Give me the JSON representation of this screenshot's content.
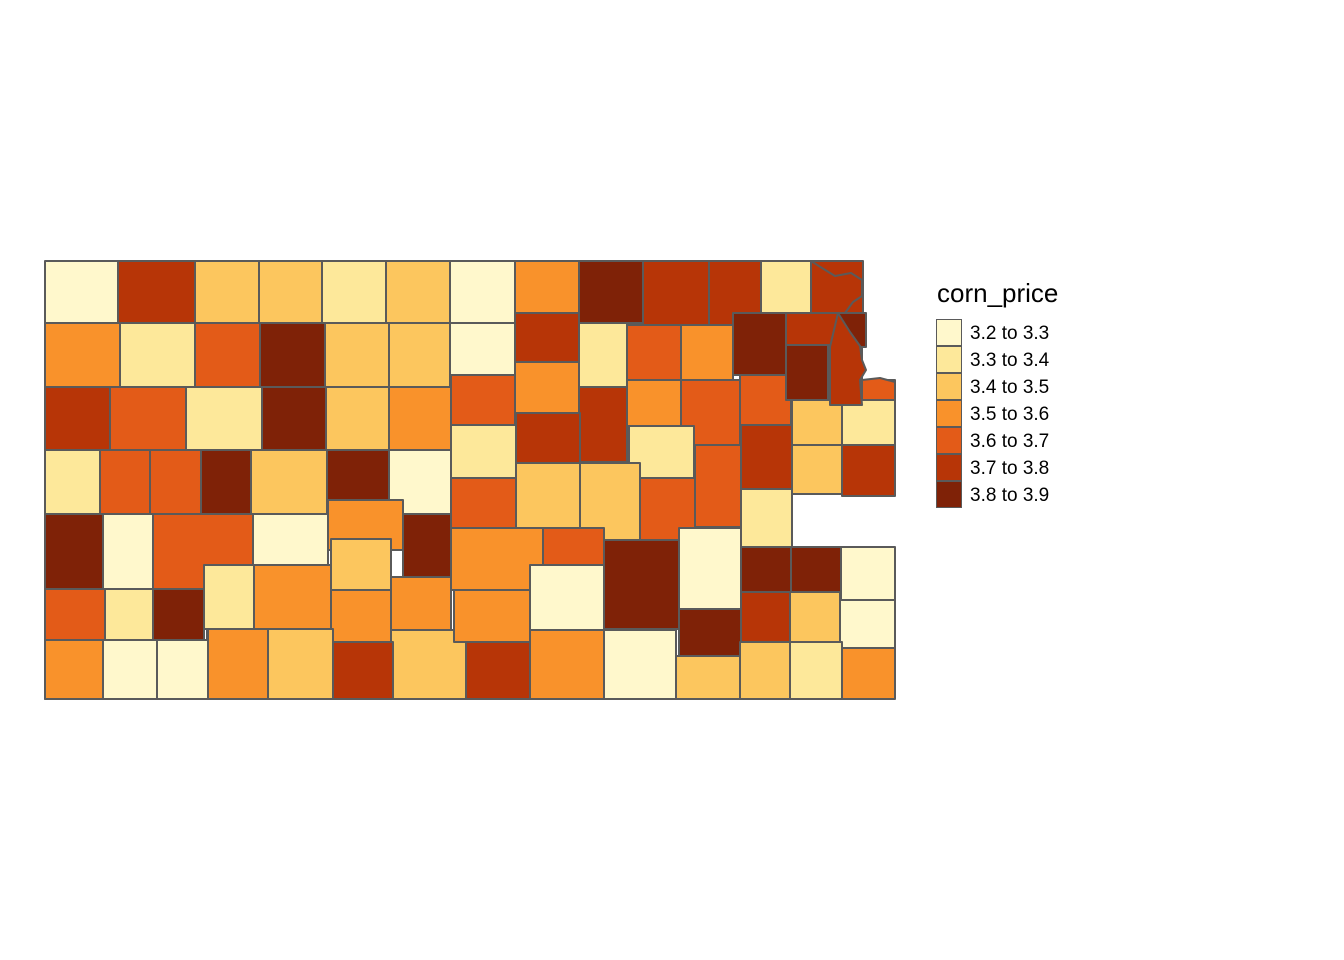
{
  "legend": {
    "title": "corn_price",
    "classes": [
      {
        "label": "3.2 to 3.3",
        "color": "#FFF8CC"
      },
      {
        "label": "3.3 to 3.4",
        "color": "#FDE89A"
      },
      {
        "label": "3.4 to 3.5",
        "color": "#FCC65E"
      },
      {
        "label": "3.5 to 3.6",
        "color": "#F9922B"
      },
      {
        "label": "3.6 to 3.7",
        "color": "#E35B18"
      },
      {
        "label": "3.7 to 3.8",
        "color": "#B73507"
      },
      {
        "label": "3.8 to 3.9",
        "color": "#7F2207"
      }
    ]
  },
  "map": {
    "region": "Kansas counties",
    "variable": "corn_price",
    "county_classes": [
      0,
      5,
      2,
      2,
      1,
      2,
      0,
      3,
      6,
      5,
      5,
      1,
      5,
      3,
      1,
      4,
      6,
      2,
      2,
      0,
      5,
      1,
      4,
      3,
      6,
      5,
      6,
      5,
      4,
      1,
      6,
      2,
      3,
      4,
      3,
      5,
      3,
      4,
      4,
      3,
      6,
      5,
      1,
      4,
      4,
      6,
      2,
      6,
      0,
      1,
      5,
      1,
      4,
      5,
      2,
      1,
      6,
      0,
      4,
      0,
      3,
      6,
      4,
      2,
      2,
      4,
      1,
      2,
      5,
      4,
      1,
      6,
      1,
      3,
      2,
      3,
      3,
      4,
      6,
      0,
      6,
      6,
      0,
      1,
      1,
      0,
      0,
      3,
      3,
      2,
      3,
      0,
      6,
      6,
      5,
      2,
      0,
      3,
      0,
      0,
      3,
      2,
      5,
      5,
      3,
      0,
      2,
      2,
      1,
      3,
      6,
      5
    ]
  }
}
